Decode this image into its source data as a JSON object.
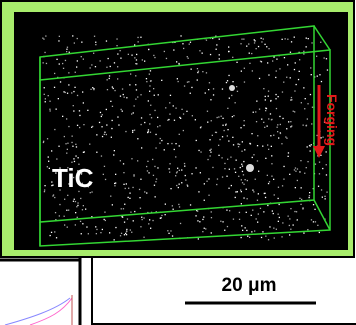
{
  "image": {
    "material_label": "TiC",
    "direction_label": "Forging"
  },
  "scale_bar": {
    "label": "20 μm"
  }
}
